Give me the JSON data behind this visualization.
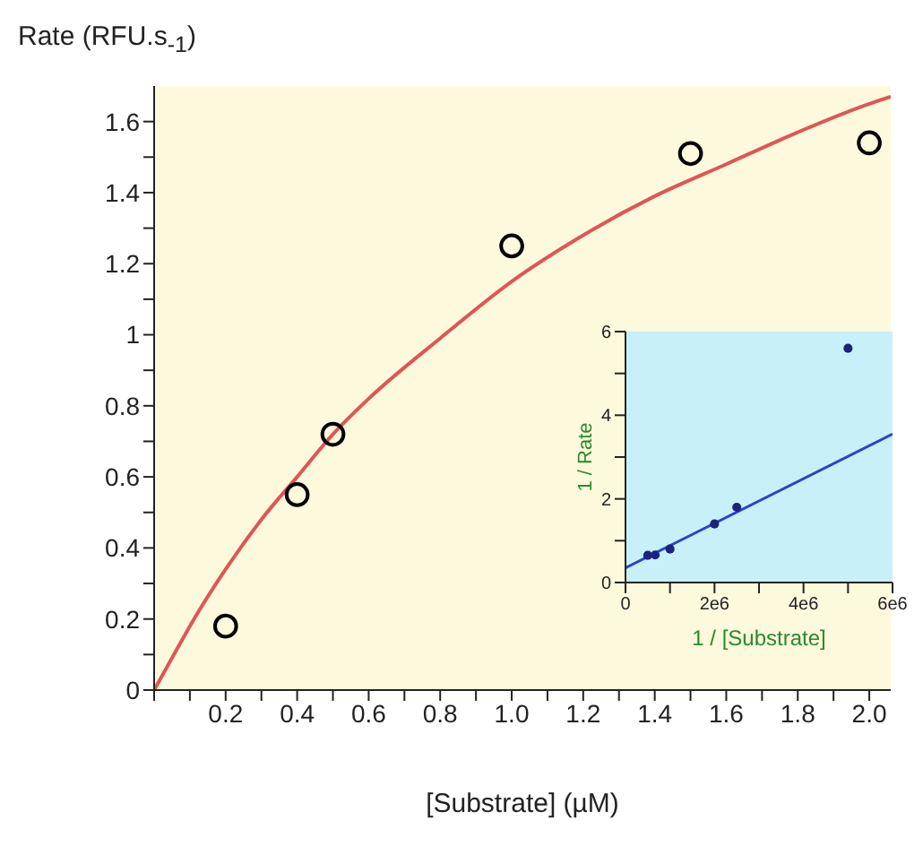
{
  "chart_data": [
    {
      "type": "scatter",
      "xlabel": "[Substrate] (µM)",
      "ylabel": "Rate (RFU.s$_{-1}$)",
      "xlim": [
        0,
        2.06
      ],
      "ylim": [
        0,
        1.7
      ],
      "xticks": [
        {
          "value": 0,
          "label": null
        },
        {
          "value": 0.1,
          "label": null
        },
        0.2,
        {
          "value": 0.3,
          "label": null
        },
        0.4,
        {
          "value": 0.5,
          "label": null
        },
        0.6,
        {
          "value": 0.7,
          "label": null
        },
        0.8,
        {
          "value": 0.9,
          "label": null
        },
        {
          "value": 1,
          "label": "1.0"
        },
        {
          "value": 1.1,
          "label": null
        },
        1.2,
        {
          "value": 1.3,
          "label": null
        },
        1.4,
        {
          "value": 1.5,
          "label": null
        },
        1.6,
        {
          "value": 1.7,
          "label": null
        },
        1.8,
        {
          "value": 1.9,
          "label": null
        },
        {
          "value": 2,
          "label": "2.0"
        }
      ],
      "yticks": [
        0,
        {
          "value": 0.1,
          "label": null
        },
        0.2,
        {
          "value": 0.3,
          "label": null
        },
        0.4,
        {
          "value": 0.5,
          "label": null
        },
        0.6,
        {
          "value": 0.7,
          "label": null
        },
        0.8,
        {
          "value": 0.9,
          "label": null
        },
        1,
        {
          "value": 1.1,
          "label": null
        },
        1.2,
        {
          "value": 1.3,
          "label": null
        },
        1.4,
        {
          "value": 1.5,
          "label": null
        },
        1.6
      ],
      "series": [
        {
          "marker": "circle",
          "color": "#000000",
          "x": [
            0.2,
            0.4,
            0.5,
            1.0,
            1.5,
            2.0
          ],
          "values": [
            0.18,
            0.55,
            0.72,
            1.25,
            1.51,
            1.54
          ]
        },
        {
          "type": "line",
          "marker": "none",
          "color": "#e05555",
          "x": [
            0,
            0.05,
            0.1,
            0.2,
            0.3,
            0.4,
            0.5,
            0.6,
            0.8,
            1.0,
            1.2,
            1.4,
            1.6,
            1.8,
            2.0,
            2.06
          ],
          "values": [
            0,
            0.09,
            0.18,
            0.34,
            0.48,
            0.6,
            0.72,
            0.82,
            0.99,
            1.15,
            1.28,
            1.39,
            1.48,
            1.57,
            1.65,
            1.67
          ]
        }
      ]
    },
    {
      "type": "scatter",
      "xlabel": "1 / [Substrate]",
      "ylabel": "1 / Rate",
      "xlim": [
        0,
        6000000
      ],
      "ylim": [
        0,
        6
      ],
      "xticks": [
        0,
        {
          "value": 1000000,
          "label": null
        },
        {
          "value": 2000000,
          "label": "2e6"
        },
        {
          "value": 3000000,
          "label": null
        },
        {
          "value": 4000000,
          "label": "4e6"
        },
        {
          "value": 5000000,
          "label": null
        },
        {
          "value": 6000000,
          "label": "6e6"
        }
      ],
      "yticks": [
        0,
        {
          "value": 1,
          "label": null
        },
        2,
        {
          "value": 3,
          "label": null
        },
        4,
        {
          "value": 5,
          "label": null
        },
        6
      ],
      "series": [
        {
          "marker": "circle",
          "color": "#1a237e",
          "x": [
            500000,
            666667,
            1000000,
            2000000,
            2500000,
            5000000
          ],
          "values": [
            0.65,
            0.66,
            0.8,
            1.4,
            1.8,
            5.6
          ]
        },
        {
          "type": "line",
          "marker": "none",
          "color": "#2a44c8",
          "x": [
            0,
            6000000
          ],
          "values": [
            0.35,
            3.55
          ]
        }
      ]
    }
  ]
}
